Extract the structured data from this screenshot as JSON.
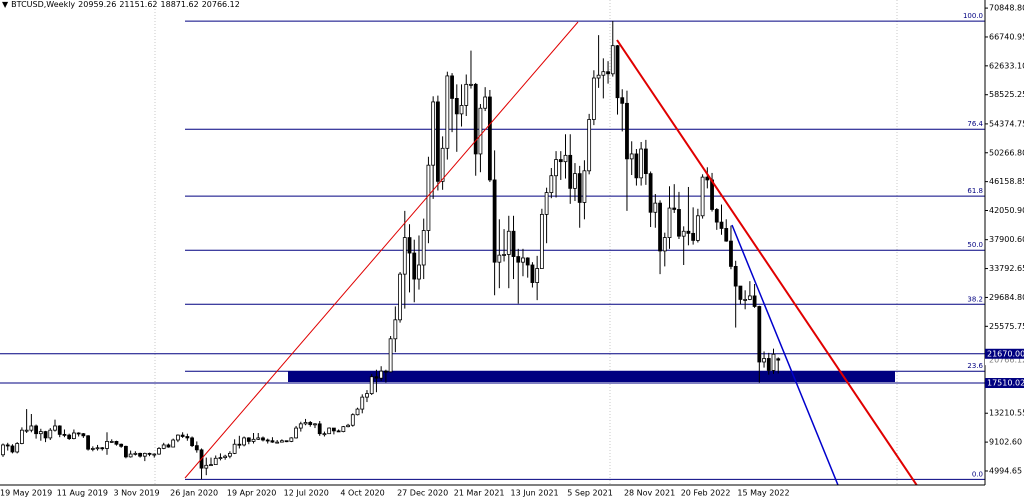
{
  "chart_data": {
    "type": "candlestick",
    "symbol": "BTCUSD,Weekly",
    "categories": [
      "19 May 2019",
      null,
      null,
      null,
      null,
      null,
      null,
      null,
      null,
      null,
      null,
      null,
      "11 Aug 2019",
      null,
      null,
      null,
      null,
      null,
      null,
      null,
      null,
      null,
      null,
      null,
      "3 Nov 2019",
      null,
      null,
      null,
      null,
      null,
      null,
      null,
      null,
      null,
      null,
      null,
      "26 Jan 2020",
      null,
      null,
      null,
      null,
      null,
      null,
      null,
      null,
      null,
      null,
      null,
      "19 Apr 2020",
      null,
      null,
      null,
      null,
      null,
      null,
      null,
      null,
      null,
      null,
      null,
      "12 Jul 2020",
      null,
      null,
      null,
      null,
      null,
      null,
      null,
      null,
      null,
      null,
      null,
      "4 Oct 2020",
      null,
      null,
      null,
      null,
      null,
      null,
      null,
      null,
      null,
      null,
      null,
      "27 Dec 2020",
      null,
      null,
      null,
      null,
      null,
      null,
      null,
      null,
      null,
      null,
      null,
      "21 Mar 2021",
      null,
      null,
      null,
      null,
      null,
      null,
      null,
      null,
      null,
      null,
      null,
      "13 Jun 2021",
      null,
      null,
      null,
      null,
      null,
      null,
      null,
      null,
      null,
      null,
      null,
      "5 Sep 2021",
      null,
      null,
      null,
      null,
      null,
      null,
      null,
      null,
      null,
      null,
      null,
      "28 Nov 2021",
      null,
      null,
      null,
      null,
      null,
      null,
      null,
      null,
      null,
      null,
      null,
      "20 Feb 2022",
      null,
      null,
      null,
      null,
      null,
      null,
      null,
      null,
      null,
      null,
      null,
      "15 May 2022",
      null,
      null,
      null,
      null,
      null,
      null,
      null,
      null
    ],
    "open": [
      7300,
      8700,
      8550,
      7700,
      8900,
      10800,
      10800,
      11400,
      10300,
      10600,
      9700,
      10800,
      11400,
      10200,
      10100,
      9600,
      10400,
      10300,
      10000,
      8100,
      8200,
      8300,
      8200,
      9200,
      9200,
      8800,
      8500,
      7000,
      7400,
      7500,
      7100,
      7500,
      7400,
      7400,
      8200,
      8700,
      8400,
      9400,
      10100,
      9900,
      9700,
      8600,
      8000,
      5400,
      5800,
      5900,
      6800,
      6900,
      7100,
      7500,
      8800,
      8700,
      9700,
      9200,
      9500,
      9700,
      9400,
      9300,
      9100,
      9100,
      9300,
      9200,
      9700,
      11100,
      11700,
      11900,
      11600,
      11700,
      10300,
      10300,
      11100,
      10700,
      10600,
      11300,
      11500,
      13000,
      13800,
      15500,
      16000,
      18400,
      18200,
      19200,
      19100,
      23800,
      26500,
      33000,
      38200,
      36000,
      32300,
      34300,
      39200,
      48500,
      57500,
      46200,
      50900,
      61200,
      58000,
      55800,
      57000,
      60000,
      60000,
      50100,
      56600,
      58200,
      46400,
      34700,
      35700,
      35800,
      39100,
      35500,
      34700,
      35300,
      34300,
      31800,
      33800,
      41500,
      44600,
      47000,
      49300,
      49000,
      49900,
      45200,
      47300,
      43200,
      47700,
      55000,
      60900,
      61300,
      61800,
      61500,
      65500,
      58100,
      57300,
      49400,
      50100,
      46700,
      50800,
      47300,
      41800,
      43100,
      36300,
      38200,
      42400,
      42200,
      38400,
      39100,
      38800,
      37800,
      41300,
      46800,
      46400,
      42200,
      40400,
      39500,
      37700,
      34100,
      31300,
      29400,
      29400,
      29900,
      28400,
      20500,
      21000,
      19300,
      20959.26
    ],
    "high": [
      8900,
      9000,
      8800,
      9100,
      11200,
      13800,
      13100,
      11600,
      11000,
      10700,
      11100,
      12300,
      11500,
      10900,
      10300,
      10900,
      10500,
      10400,
      10100,
      8500,
      8700,
      8400,
      10500,
      9500,
      9300,
      8900,
      8600,
      7900,
      7800,
      7600,
      7600,
      7600,
      7500,
      8400,
      9000,
      8900,
      9600,
      10200,
      10500,
      10300,
      9900,
      9200,
      8200,
      6900,
      6900,
      7200,
      7500,
      7300,
      7800,
      9500,
      10000,
      9900,
      9800,
      10400,
      10400,
      9900,
      9600,
      9800,
      9400,
      9500,
      9300,
      9800,
      11400,
      12000,
      12400,
      12100,
      11800,
      12100,
      10600,
      11200,
      11100,
      10900,
      11400,
      11700,
      13200,
      14000,
      15900,
      16500,
      18800,
      19400,
      19900,
      19400,
      24200,
      28400,
      33300,
      42000,
      40100,
      37900,
      38500,
      40900,
      49700,
      58300,
      58400,
      52600,
      61800,
      61600,
      60000,
      60000,
      61400,
      64800,
      60200,
      57200,
      59600,
      59200,
      50600,
      40800,
      39400,
      41300,
      41300,
      36600,
      36600,
      35400,
      34700,
      35600,
      42300,
      45300,
      48100,
      50500,
      50500,
      52900,
      52900,
      48800,
      48400,
      49200,
      55800,
      62000,
      67000,
      63700,
      63300,
      69000,
      65600,
      59300,
      59100,
      51900,
      50800,
      51800,
      52100,
      47600,
      44400,
      43500,
      38900,
      45500,
      45800,
      44700,
      39800,
      45400,
      42500,
      42300,
      47200,
      48200,
      47400,
      42400,
      42900,
      40800,
      39900,
      34900,
      31300,
      30700,
      32000,
      31600,
      28500,
      22000,
      21800,
      22400,
      21151.62
    ],
    "low": [
      7000,
      7900,
      7500,
      7500,
      8800,
      10400,
      10500,
      9600,
      9300,
      9100,
      9400,
      10600,
      9800,
      9800,
      9400,
      9500,
      9900,
      9700,
      7900,
      7800,
      7900,
      7900,
      7300,
      9000,
      8600,
      8300,
      6800,
      6900,
      7200,
      6900,
      6400,
      7100,
      6900,
      7300,
      8100,
      8300,
      8400,
      9100,
      9700,
      9300,
      8400,
      7600,
      3800,
      4400,
      5700,
      5900,
      6500,
      6600,
      6800,
      7400,
      8200,
      8500,
      8800,
      8900,
      9400,
      9200,
      8900,
      9000,
      8900,
      9100,
      9100,
      9100,
      9600,
      10600,
      11500,
      11300,
      11100,
      10000,
      9900,
      10300,
      10200,
      10600,
      10500,
      11200,
      11300,
      12900,
      13200,
      14800,
      15800,
      16200,
      17800,
      17600,
      19000,
      21900,
      26100,
      28100,
      30400,
      29000,
      30800,
      32300,
      37400,
      43700,
      44900,
      45000,
      49300,
      53200,
      50400,
      54000,
      55500,
      59400,
      47000,
      47500,
      56200,
      46100,
      30000,
      31000,
      34800,
      31000,
      32300,
      28800,
      32700,
      32500,
      31100,
      29300,
      33800,
      37400,
      43800,
      43900,
      46400,
      46600,
      43000,
      43400,
      39600,
      40800,
      47200,
      54200,
      59500,
      58000,
      60100,
      61100,
      55700,
      53300,
      42000,
      47100,
      45600,
      45600,
      45700,
      39700,
      39600,
      33000,
      34100,
      36600,
      41700,
      38000,
      34300,
      37100,
      37200,
      37500,
      40900,
      45200,
      41900,
      39300,
      38600,
      37600,
      33700,
      25400,
      28700,
      28000,
      29300,
      28200,
      17600,
      19700,
      18700,
      18800,
      18871.62
    ],
    "close": [
      8700,
      8550,
      7700,
      8900,
      10800,
      10800,
      11400,
      10300,
      10600,
      9700,
      10800,
      11400,
      10200,
      10100,
      9600,
      10400,
      10300,
      10000,
      8100,
      8200,
      8300,
      8200,
      9200,
      9200,
      8800,
      8500,
      7000,
      7400,
      7500,
      7100,
      7500,
      7400,
      7400,
      8200,
      8700,
      8400,
      9400,
      10100,
      9900,
      9700,
      8600,
      8000,
      5400,
      5800,
      5900,
      6800,
      6900,
      7100,
      7500,
      8800,
      8700,
      9700,
      9200,
      9500,
      9700,
      9400,
      9300,
      9100,
      9100,
      9300,
      9200,
      9700,
      11100,
      11700,
      11900,
      11600,
      11700,
      10300,
      10300,
      11100,
      10700,
      10600,
      11300,
      11500,
      13000,
      13800,
      15500,
      16000,
      18400,
      18200,
      19200,
      19100,
      23800,
      26500,
      33000,
      38200,
      36000,
      32300,
      34300,
      39200,
      48500,
      57500,
      46200,
      50900,
      61200,
      58000,
      55800,
      57000,
      60000,
      60000,
      50100,
      56600,
      58200,
      46400,
      34700,
      35700,
      35800,
      39100,
      35500,
      34700,
      35300,
      34300,
      31800,
      33800,
      41500,
      44600,
      47000,
      49300,
      49000,
      49900,
      45200,
      47300,
      43200,
      47700,
      55000,
      60900,
      61300,
      61800,
      61500,
      65500,
      58100,
      57300,
      49400,
      50100,
      46700,
      50800,
      47300,
      41800,
      43100,
      36300,
      38200,
      42400,
      42200,
      38400,
      39100,
      38800,
      37800,
      41300,
      46800,
      46400,
      42200,
      40400,
      39500,
      37700,
      34100,
      31300,
      29400,
      29400,
      29900,
      28400,
      20500,
      21000,
      19300,
      21600,
      20766.12
    ],
    "ylim": [
      3000,
      72000
    ],
    "yticks": [
      {
        "value": 70848.8,
        "label": "70848.80"
      },
      {
        "value": 66740.95,
        "label": "66740.95"
      },
      {
        "value": 62633.1,
        "label": "62633.10"
      },
      {
        "value": 58525.25,
        "label": "58525.25"
      },
      {
        "value": 54374.75,
        "label": "54374.75"
      },
      {
        "value": 50266.8,
        "label": "50266.80"
      },
      {
        "value": 46158.85,
        "label": "46158.85"
      },
      {
        "value": 42050.9,
        "label": "42050.90"
      },
      {
        "value": 37900.6,
        "label": "37900.60"
      },
      {
        "value": 33792.65,
        "label": "33792.65"
      },
      {
        "value": 29684.8,
        "label": "29684.80"
      },
      {
        "value": 25575.75,
        "label": "25575.75"
      },
      {
        "value": 13210.55,
        "label": "13210.55"
      },
      {
        "value": 9102.6,
        "label": "9102.60"
      },
      {
        "value": 4994.65,
        "label": "4994.65"
      }
    ],
    "hlines": [
      {
        "value": 21670,
        "label": "21670.00"
      },
      {
        "value": 17510.02,
        "label": "17510.02"
      }
    ],
    "fibonacci": {
      "from": 3800,
      "to": 69000,
      "levels": [
        {
          "value": 0,
          "label": "0.0"
        },
        23.6,
        38.2,
        {
          "value": 50,
          "label": "50.0"
        },
        61.8,
        76.4,
        {
          "value": 100,
          "label": "100.0"
        }
      ]
    },
    "colors": {
      "up": "#ffffff",
      "down": "#000000",
      "line": "#000080",
      "price": "#808080"
    }
  }
}
